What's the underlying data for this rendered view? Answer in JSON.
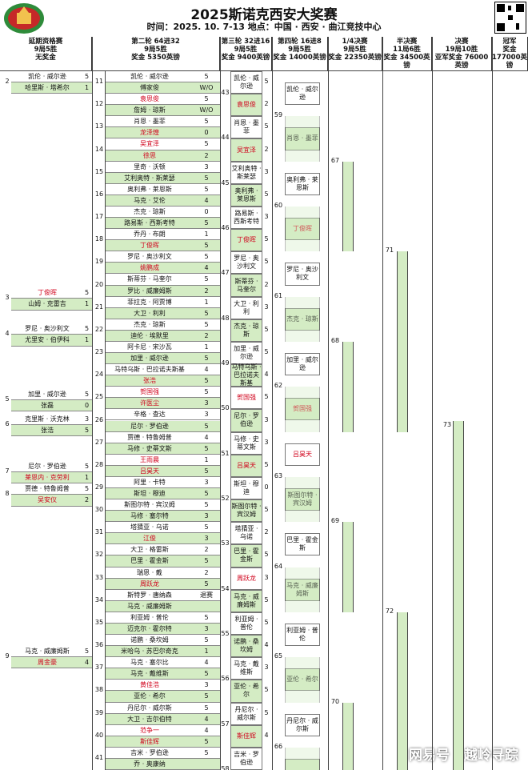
{
  "header": {
    "title": "2025斯诺克西安大奖赛",
    "subtitle": "时间：2025. 10. 7-13  地点：中国 · 西安 · 曲江竞技中心",
    "logo_text": "斯诺克西安大奖赛"
  },
  "columns": [
    {
      "l1": "延期资格赛",
      "l2": "9局5胜",
      "l3": "无奖金"
    },
    {
      "l1": "第二轮  64进32",
      "l2": "9局5胜",
      "l3": "奖金  5350英镑"
    },
    {
      "l1": "第三轮 32进16",
      "l2": "9局5胜",
      "l3": "奖金  9400英镑"
    },
    {
      "l1": "第四轮 16进8",
      "l2": "9局5胜",
      "l3": "奖金  14000英镑"
    },
    {
      "l1": "1/4决赛",
      "l2": "9局5胜",
      "l3": "奖金  22350英镑"
    },
    {
      "l1": "半决赛",
      "l2": "11局6胜",
      "l3": "奖金  34500英镑"
    },
    {
      "l1": "决赛",
      "l2": "19局10胜",
      "l3": "亚军奖金 76000英镑"
    },
    {
      "l1": "冠军",
      "l2": "奖金",
      "l3": "177000英镑"
    }
  ],
  "qual": [
    {
      "n": "2",
      "a": "凯伦 · 威尔逊",
      "as": "5",
      "b": "哈里斯 · 塔希尔",
      "bs": "1",
      "out": "",
      "red": false
    },
    {
      "n": "3",
      "a": "丁俊晖",
      "as": "5",
      "b": "山姆 · 克雷吉",
      "bs": "1",
      "out": "",
      "red": true
    },
    {
      "n": "4",
      "a": "罗尼 · 奥沙利文",
      "as": "5",
      "b": "尤里安 · 伯伊科",
      "bs": "1",
      "out": "",
      "red": false
    },
    {
      "n": "5",
      "a": "加里 · 威尔逊",
      "as": "5",
      "b": "张磊",
      "bs": "0",
      "out": "",
      "red": false
    },
    {
      "n": "6",
      "a": "克里斯 · 沃克林",
      "as": "3",
      "b": "张浩",
      "bs": "5",
      "out": "",
      "red": false
    },
    {
      "n": "7",
      "a": "尼尔 · 罗伯逊",
      "as": "5",
      "b": "莱恩内 · 克劳利",
      "bs": "1",
      "out": "",
      "red": false
    },
    {
      "n": "8",
      "a": "贾德 · 特鲁姆普",
      "as": "5",
      "b": "吴安仪",
      "bs": "2",
      "out": "",
      "red": false
    },
    {
      "n": "9",
      "a": "马克 · 威廉姆斯",
      "as": "5",
      "b": "周金豪",
      "bs": "4",
      "out": "",
      "red": false
    }
  ],
  "r2": [
    {
      "m": "11",
      "a": "凯伦 · 威尔逊",
      "as": "5",
      "b": "傅家俊",
      "bs": "W/O",
      "ar": false,
      "br": false
    },
    {
      "m": "12",
      "a": "袁思俊",
      "as": "5",
      "b": "詹姆 · 琼斯",
      "bs": "W/O",
      "ar": true,
      "br": false
    },
    {
      "m": "13",
      "a": "肖恩 · 墨菲",
      "as": "5",
      "b": "龙泽煌",
      "bs": "0",
      "ar": false,
      "br": true
    },
    {
      "m": "14",
      "a": "吴宜泽",
      "as": "5",
      "b": "徐思",
      "bs": "2",
      "ar": true,
      "br": true
    },
    {
      "m": "15",
      "a": "里奇 · 沃顿",
      "as": "3",
      "b": "艾利奥特 · 斯莱瑟",
      "bs": "5",
      "ar": false,
      "br": false
    },
    {
      "m": "16",
      "a": "奥利弗 · 莱恩斯",
      "as": "5",
      "b": "马克 · 艾伦",
      "bs": "4",
      "ar": false,
      "br": false
    },
    {
      "m": "17",
      "a": "杰克 · 琼斯",
      "as": "0",
      "b": "路易斯 · 西斯考特",
      "bs": "5",
      "ar": false,
      "br": false
    },
    {
      "m": "18",
      "a": "乔丹 · 布朗",
      "as": "1",
      "b": "丁俊晖",
      "bs": "5",
      "ar": false,
      "br": true
    },
    {
      "m": "19",
      "a": "罗尼 · 奥沙利文",
      "as": "5",
      "b": "姚鹏成",
      "bs": "4",
      "ar": false,
      "br": true
    },
    {
      "m": "20",
      "a": "斯蒂芬 · 马奎尔",
      "as": "5",
      "b": "罗比 · 威廉姆斯",
      "bs": "2",
      "ar": false,
      "br": false
    },
    {
      "m": "21",
      "a": "菲拉克 · 阿贾博",
      "as": "1",
      "b": "大卫 · 利利",
      "bs": "5",
      "ar": false,
      "br": false
    },
    {
      "m": "22",
      "a": "杰克 · 琼斯",
      "as": "5",
      "b": "迪伦 · 埃默里",
      "bs": "2",
      "ar": false,
      "br": false
    },
    {
      "m": "23",
      "a": "阿卡尼 · 宋沙瓦",
      "as": "1",
      "b": "加里 · 威尔逊",
      "bs": "5",
      "ar": false,
      "br": false
    },
    {
      "m": "24",
      "a": "马特乌斯 · 巴拉诺夫斯基",
      "as": "4",
      "b": "张浩",
      "bs": "5",
      "ar": false,
      "br": true
    },
    {
      "m": "25",
      "a": "贺国强",
      "as": "5",
      "b": "许医尘",
      "bs": "3",
      "ar": true,
      "br": true
    },
    {
      "m": "26",
      "a": "辛格 · 查达",
      "as": "3",
      "b": "尼尔 · 罗伯逊",
      "bs": "5",
      "ar": false,
      "br": false
    },
    {
      "m": "27",
      "a": "贾德 · 特鲁姆普",
      "as": "4",
      "b": "马修 · 史蒂文斯",
      "bs": "5",
      "ar": false,
      "br": false
    },
    {
      "m": "28",
      "a": "王雨晨",
      "as": "1",
      "b": "吕昊天",
      "bs": "5",
      "ar": true,
      "br": true
    },
    {
      "m": "29",
      "a": "阿里 · 卡特",
      "as": "3",
      "b": "斯坦 · 穆迪",
      "bs": "5",
      "ar": false,
      "br": false
    },
    {
      "m": "30",
      "a": "斯图尔特 · 宾汉姆",
      "as": "5",
      "b": "马修 · 塞尔特",
      "bs": "3",
      "ar": false,
      "br": false
    },
    {
      "m": "31",
      "a": "塔猜亚 · 乌诺",
      "as": "5",
      "b": "江俊",
      "bs": "3",
      "ar": false,
      "br": true
    },
    {
      "m": "32",
      "a": "大卫 · 格雷斯",
      "as": "2",
      "b": "巴里 · 霍金斯",
      "bs": "5",
      "ar": false,
      "br": false
    },
    {
      "m": "33",
      "a": "瑞恩 · 戴",
      "as": "2",
      "b": "周跃龙",
      "bs": "5",
      "ar": false,
      "br": true
    },
    {
      "m": "34",
      "a": "斯特罗 · 唐纳森",
      "as": "退赛",
      "b": "马克 · 威廉姆斯",
      "bs": "",
      "ar": false,
      "br": false
    },
    {
      "m": "35",
      "a": "利亚姆 · 普伦",
      "as": "5",
      "b": "迈克尔 · 霍尔特",
      "bs": "3",
      "ar": false,
      "br": false
    },
    {
      "m": "36",
      "a": "诺鹏 · 桑坎姆",
      "as": "5",
      "b": "米哈乌 · 苏巴尔奇克",
      "bs": "1",
      "ar": false,
      "br": false
    },
    {
      "m": "37",
      "a": "马克 · 塞尔比",
      "as": "4",
      "b": "马克 · 戴维斯",
      "bs": "5",
      "ar": false,
      "br": false
    },
    {
      "m": "38",
      "a": "黄佳浩",
      "as": "3",
      "b": "亚伦 · 希尔",
      "bs": "5",
      "ar": true,
      "br": false
    },
    {
      "m": "39",
      "a": "丹尼尔 · 威尔斯",
      "as": "5",
      "b": "大卫 · 吉尔伯特",
      "bs": "4",
      "ar": false,
      "br": false
    },
    {
      "m": "40",
      "a": "范争一",
      "as": "4",
      "b": "斯佳辉",
      "bs": "5",
      "ar": true,
      "br": true
    },
    {
      "m": "41",
      "a": "吉米 · 罗伯逊",
      "as": "5",
      "b": "乔 · 奥康纳",
      "bs": "",
      "ar": false,
      "br": false
    }
  ],
  "r3": [
    {
      "m": "43",
      "a": "凯伦 · 威尔逊",
      "as": "5",
      "b": "袁思俊",
      "bs": "2",
      "ar": false,
      "br": true
    },
    {
      "m": "44",
      "a": "肖恩 · 墨菲",
      "as": "5",
      "b": "吴宜泽",
      "bs": "2",
      "ar": false,
      "br": true
    },
    {
      "m": "45",
      "a": "艾利奥特 · 斯莱瑟",
      "as": "3",
      "b": "奥利弗 · 莱恩斯",
      "bs": "5",
      "ar": false,
      "br": false
    },
    {
      "m": "46",
      "a": "路易斯 · 西斯考特",
      "as": "3",
      "b": "丁俊晖",
      "bs": "5",
      "ar": false,
      "br": true
    },
    {
      "m": "47",
      "a": "罗尼 · 奥沙利文",
      "as": "5",
      "b": "斯蒂芬 · 马奎尔",
      "bs": "2",
      "ar": false,
      "br": false
    },
    {
      "m": "48",
      "a": "大卫 · 利利",
      "as": "3",
      "b": "杰克 · 琼斯",
      "bs": "5",
      "ar": false,
      "br": false
    },
    {
      "m": "49",
      "a": "加里 · 威尔逊",
      "as": "5",
      "b": "马特乌斯 · 巴拉诺夫斯基",
      "bs": "4",
      "ar": false,
      "br": false
    },
    {
      "m": "50",
      "a": "贺国强",
      "as": "5",
      "b": "尼尔 · 罗伯逊",
      "bs": "3",
      "ar": true,
      "br": false
    },
    {
      "m": "51",
      "a": "马修 · 史蒂文斯",
      "as": "3",
      "b": "吕昊天",
      "bs": "5",
      "ar": false,
      "br": true
    },
    {
      "m": "52",
      "a": "斯坦 · 穆迪",
      "as": "0",
      "b": "斯图尔特 · 宾汉姆",
      "bs": "5",
      "ar": false,
      "br": false
    },
    {
      "m": "53",
      "a": "塔猜亚 · 乌诺",
      "as": "2",
      "b": "巴里 · 霍金斯",
      "bs": "5",
      "ar": false,
      "br": false
    },
    {
      "m": "54",
      "a": "周跃龙",
      "as": "3",
      "b": "马克 · 威廉姆斯",
      "bs": "5",
      "ar": true,
      "br": false
    },
    {
      "m": "55",
      "a": "利亚姆 · 普伦",
      "as": "5",
      "b": "诺鹏 · 桑坎姆",
      "bs": "4",
      "ar": false,
      "br": false
    },
    {
      "m": "56",
      "a": "马克 · 戴维斯",
      "as": "3",
      "b": "亚伦 · 希尔",
      "bs": "5",
      "ar": false,
      "br": false
    },
    {
      "m": "57",
      "a": "丹尼尔 · 威尔斯",
      "as": "5",
      "b": "斯佳辉",
      "bs": "4",
      "ar": false,
      "br": true
    },
    {
      "m": "58",
      "a": "吉米 · 罗伯逊",
      "as": "",
      "b": "",
      "bs": "",
      "ar": false,
      "br": false
    }
  ],
  "r4": [
    {
      "m": "59",
      "a": "凯伦 · 威尔逊",
      "b": "肖恩 · 墨菲",
      "ar": false,
      "br": false
    },
    {
      "m": "60",
      "a": "奥利弗 · 莱恩斯",
      "b": "丁俊晖",
      "ar": false,
      "br": true
    },
    {
      "m": "61",
      "a": "罗尼 · 奥沙利文",
      "b": "杰克 · 琼斯",
      "ar": false,
      "br": false
    },
    {
      "m": "62",
      "a": "加里 · 威尔逊",
      "b": "贺国强",
      "ar": false,
      "br": true
    },
    {
      "m": "63",
      "a": "吕昊天",
      "b": "斯图尔特 · 宾汉姆",
      "ar": true,
      "br": false
    },
    {
      "m": "64",
      "a": "巴里 · 霍金斯",
      "b": "马克 · 威廉姆斯",
      "ar": false,
      "br": false
    },
    {
      "m": "65",
      "a": "利亚姆 · 普伦",
      "b": "亚伦 · 希尔",
      "ar": false,
      "br": false
    },
    {
      "m": "66",
      "a": "丹尼尔 · 威尔斯",
      "b": "",
      "ar": false,
      "br": false
    }
  ],
  "qf": [
    "67",
    "68",
    "69",
    "70"
  ],
  "sf": [
    "71",
    "72"
  ],
  "final": [
    "73"
  ],
  "watermark": "网易号 | 越岭寻踪"
}
